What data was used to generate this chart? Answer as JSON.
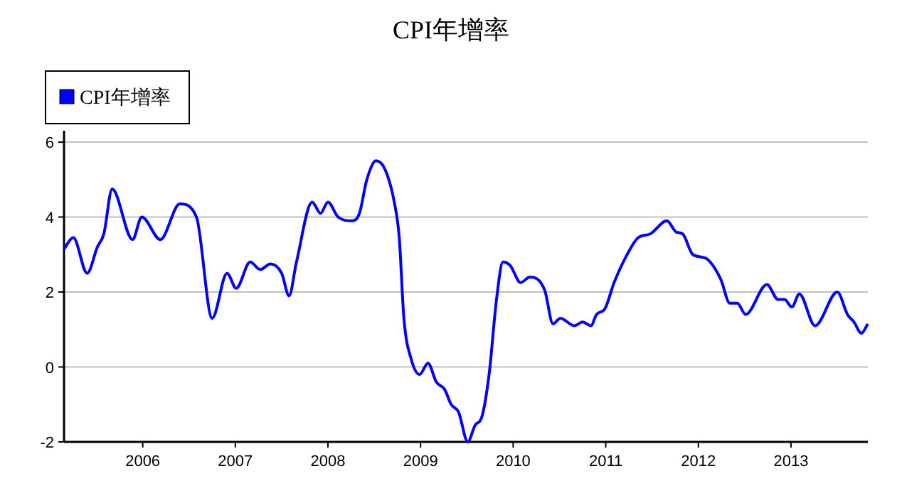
{
  "chart_data": {
    "type": "line",
    "title": "CPI年增率",
    "x": [
      2005.15,
      2005.25,
      2005.4,
      2005.51,
      2005.58,
      2005.67,
      2005.89,
      2005.99,
      2006.19,
      2006.4,
      2006.58,
      2006.75,
      2006.91,
      2007.01,
      2007.16,
      2007.27,
      2007.38,
      2007.5,
      2007.58,
      2007.66,
      2007.83,
      2007.92,
      2008.0,
      2008.11,
      2008.26,
      2008.34,
      2008.42,
      2008.52,
      2008.62,
      2008.72,
      2008.77,
      2008.82,
      2008.9,
      2008.99,
      2009.08,
      2009.17,
      2009.26,
      2009.33,
      2009.41,
      2009.51,
      2009.59,
      2009.66,
      2009.74,
      2009.82,
      2009.89,
      2009.97,
      2010.08,
      2010.18,
      2010.34,
      2010.43,
      2010.51,
      2010.66,
      2010.75,
      2010.84,
      2010.9,
      2010.99,
      2011.09,
      2011.22,
      2011.35,
      2011.48,
      2011.66,
      2011.76,
      2011.83,
      2011.94,
      2012.08,
      2012.24,
      2012.34,
      2012.42,
      2012.51,
      2012.74,
      2012.86,
      2012.93,
      2013.01,
      2013.09,
      2013.26,
      2013.5,
      2013.61,
      2013.68,
      2013.76,
      2013.83
    ],
    "series": [
      {
        "name": "CPI年增率",
        "color": "#0000ff",
        "values": [
          3.15,
          3.45,
          2.5,
          3.2,
          3.55,
          4.75,
          3.4,
          4.0,
          3.4,
          4.35,
          4.0,
          1.3,
          2.5,
          2.1,
          2.8,
          2.6,
          2.75,
          2.5,
          1.9,
          2.8,
          4.4,
          4.1,
          4.4,
          4.0,
          3.9,
          4.1,
          5.0,
          5.5,
          5.25,
          4.35,
          3.45,
          1.3,
          0.2,
          -0.2,
          0.1,
          -0.4,
          -0.6,
          -1.0,
          -1.2,
          -2.0,
          -1.55,
          -1.35,
          -0.2,
          1.8,
          2.8,
          2.7,
          2.25,
          2.4,
          2.05,
          1.15,
          1.3,
          1.1,
          1.2,
          1.1,
          1.4,
          1.55,
          2.25,
          2.95,
          3.45,
          3.55,
          3.9,
          3.6,
          3.55,
          3.0,
          2.9,
          2.35,
          1.7,
          1.7,
          1.4,
          2.2,
          1.8,
          1.8,
          1.6,
          1.95,
          1.1,
          2.0,
          1.4,
          1.2,
          0.9,
          1.15
        ]
      }
    ],
    "xlim": [
      2005.15,
      2013.83
    ],
    "xticks": [
      2006,
      2007,
      2008,
      2009,
      2010,
      2011,
      2012,
      2013
    ],
    "ylim": [
      -2,
      6
    ],
    "yticks": [
      -2,
      0,
      2,
      4,
      6
    ],
    "grid": "y",
    "legend": "top left",
    "marker": "none"
  }
}
